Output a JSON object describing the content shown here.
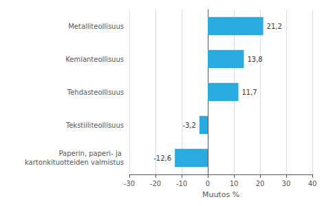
{
  "chart_data": {
    "type": "bar",
    "orientation": "horizontal",
    "categories": [
      "Paperin, paperi- ja kartonkituotteiden valmistus",
      "Tekstiiliteollisuus",
      "Tehdasteollisuus",
      "Kemianteollisuus",
      "Metalliteollisuus"
    ],
    "values": [
      -12.6,
      -3.2,
      11.7,
      13.8,
      21.2
    ],
    "value_labels": [
      "-12,6",
      "-3,2",
      "11,7",
      "13,8",
      "21,2"
    ],
    "data_labels": true,
    "color": "#29abe2",
    "xlabel": "Muutos %",
    "xlim": [
      -30,
      40
    ],
    "xticks": [
      -30,
      -20,
      -10,
      0,
      10,
      20,
      30,
      40
    ],
    "grid": true
  }
}
